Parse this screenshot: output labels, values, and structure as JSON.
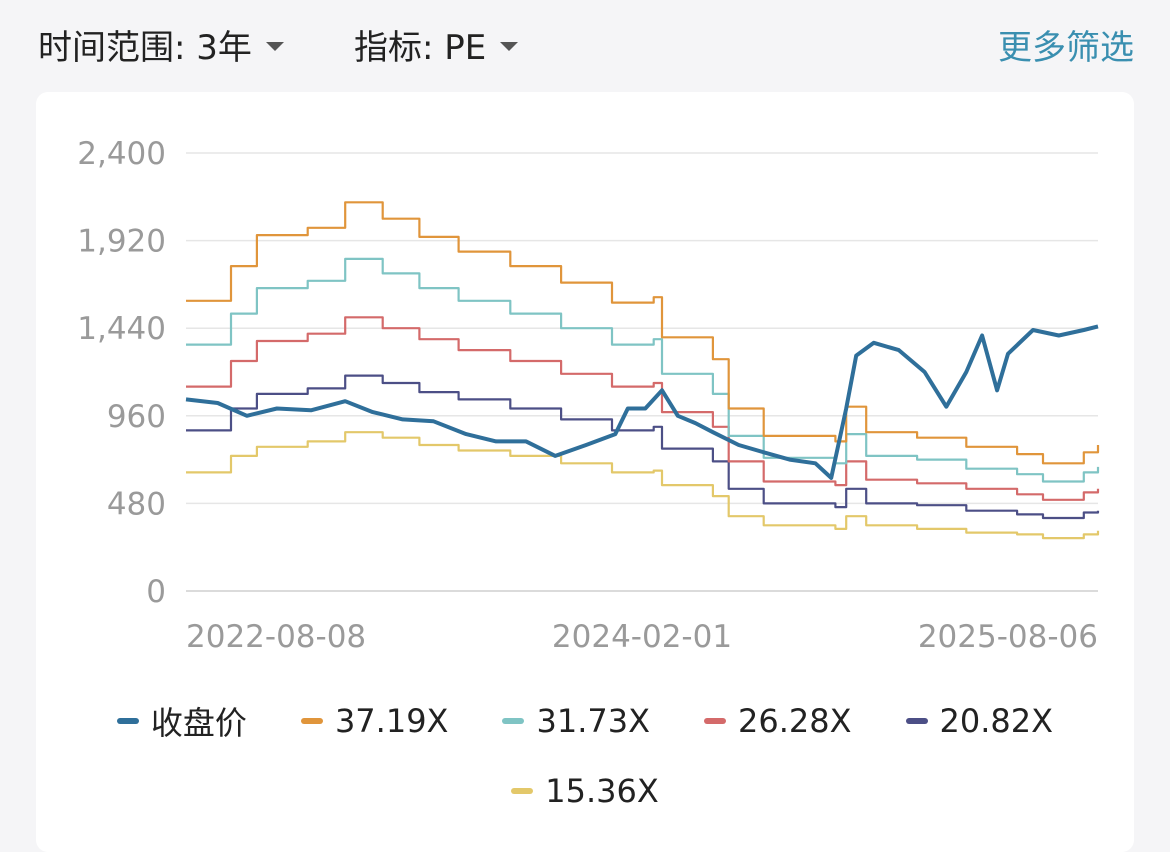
{
  "header": {
    "range_label": "时间范围: 3年",
    "metric_label": "指标: PE",
    "more_label": "更多筛选"
  },
  "chart_data": {
    "type": "line",
    "title": "",
    "xlabel": "",
    "ylabel": "",
    "ylim": [
      0,
      2400
    ],
    "yticks": [
      0,
      480,
      960,
      1440,
      1920,
      2400
    ],
    "ytick_labels": [
      "0",
      "480",
      "960",
      "1,440",
      "1,920",
      "2,400"
    ],
    "xtick_labels": [
      "2022-08-08",
      "2024-02-01",
      "2025-08-06"
    ],
    "xlim": [
      "2022-08-08",
      "2025-08-06"
    ],
    "grid": "horizontal",
    "legend_position": "bottom",
    "series": [
      {
        "name": "收盘价",
        "color": "#2f6f9a",
        "points": [
          [
            "2022-08-08",
            1050
          ],
          [
            "2022-09-15",
            1030
          ],
          [
            "2022-10-20",
            960
          ],
          [
            "2022-11-25",
            1000
          ],
          [
            "2023-01-05",
            990
          ],
          [
            "2023-02-15",
            1040
          ],
          [
            "2023-03-20",
            980
          ],
          [
            "2023-04-25",
            940
          ],
          [
            "2023-06-01",
            930
          ],
          [
            "2023-07-10",
            860
          ],
          [
            "2023-08-15",
            820
          ],
          [
            "2023-09-20",
            820
          ],
          [
            "2023-10-25",
            740
          ],
          [
            "2023-12-01",
            800
          ],
          [
            "2024-01-05",
            860
          ],
          [
            "2024-01-20",
            1000
          ],
          [
            "2024-02-10",
            1000
          ],
          [
            "2024-03-01",
            1100
          ],
          [
            "2024-03-20",
            960
          ],
          [
            "2024-04-10",
            920
          ],
          [
            "2024-05-01",
            870
          ],
          [
            "2024-06-01",
            800
          ],
          [
            "2024-07-01",
            760
          ],
          [
            "2024-08-01",
            720
          ],
          [
            "2024-09-01",
            700
          ],
          [
            "2024-09-20",
            620
          ],
          [
            "2024-10-08",
            1000
          ],
          [
            "2024-10-20",
            1290
          ],
          [
            "2024-11-10",
            1360
          ],
          [
            "2024-12-10",
            1320
          ],
          [
            "2025-01-10",
            1200
          ],
          [
            "2025-02-05",
            1010
          ],
          [
            "2025-03-01",
            1200
          ],
          [
            "2025-03-20",
            1400
          ],
          [
            "2025-04-07",
            1100
          ],
          [
            "2025-04-20",
            1300
          ],
          [
            "2025-05-20",
            1430
          ],
          [
            "2025-06-20",
            1400
          ],
          [
            "2025-07-20",
            1430
          ],
          [
            "2025-08-06",
            1450
          ]
        ]
      },
      {
        "name": "37.19X",
        "color": "#e0953b",
        "points": [
          [
            "2022-08-08",
            1590
          ],
          [
            "2022-10-01",
            1780
          ],
          [
            "2022-11-01",
            1950
          ],
          [
            "2023-01-01",
            1990
          ],
          [
            "2023-02-15",
            2130
          ],
          [
            "2023-04-01",
            2040
          ],
          [
            "2023-05-15",
            1940
          ],
          [
            "2023-07-01",
            1860
          ],
          [
            "2023-09-01",
            1780
          ],
          [
            "2023-11-01",
            1690
          ],
          [
            "2024-01-01",
            1580
          ],
          [
            "2024-02-20",
            1610
          ],
          [
            "2024-03-01",
            1390
          ],
          [
            "2024-05-01",
            1270
          ],
          [
            "2024-05-20",
            1000
          ],
          [
            "2024-07-01",
            850
          ],
          [
            "2024-09-25",
            820
          ],
          [
            "2024-10-08",
            1010
          ],
          [
            "2024-11-01",
            870
          ],
          [
            "2025-01-01",
            840
          ],
          [
            "2025-03-01",
            790
          ],
          [
            "2025-05-01",
            750
          ],
          [
            "2025-06-01",
            700
          ],
          [
            "2025-07-20",
            760
          ],
          [
            "2025-08-06",
            800
          ]
        ]
      },
      {
        "name": "31.73X",
        "color": "#7fc4c4",
        "points": [
          [
            "2022-08-08",
            1350
          ],
          [
            "2022-10-01",
            1520
          ],
          [
            "2022-11-01",
            1660
          ],
          [
            "2023-01-01",
            1700
          ],
          [
            "2023-02-15",
            1820
          ],
          [
            "2023-04-01",
            1740
          ],
          [
            "2023-05-15",
            1660
          ],
          [
            "2023-07-01",
            1590
          ],
          [
            "2023-09-01",
            1520
          ],
          [
            "2023-11-01",
            1440
          ],
          [
            "2024-01-01",
            1350
          ],
          [
            "2024-02-20",
            1380
          ],
          [
            "2024-03-01",
            1190
          ],
          [
            "2024-05-01",
            1080
          ],
          [
            "2024-05-20",
            850
          ],
          [
            "2024-07-01",
            730
          ],
          [
            "2024-09-25",
            700
          ],
          [
            "2024-10-08",
            860
          ],
          [
            "2024-11-01",
            740
          ],
          [
            "2025-01-01",
            720
          ],
          [
            "2025-03-01",
            670
          ],
          [
            "2025-05-01",
            640
          ],
          [
            "2025-06-01",
            600
          ],
          [
            "2025-07-20",
            650
          ],
          [
            "2025-08-06",
            680
          ]
        ]
      },
      {
        "name": "26.28X",
        "color": "#d46a6a",
        "points": [
          [
            "2022-08-08",
            1120
          ],
          [
            "2022-10-01",
            1260
          ],
          [
            "2022-11-01",
            1370
          ],
          [
            "2023-01-01",
            1410
          ],
          [
            "2023-02-15",
            1500
          ],
          [
            "2023-04-01",
            1440
          ],
          [
            "2023-05-15",
            1380
          ],
          [
            "2023-07-01",
            1320
          ],
          [
            "2023-09-01",
            1260
          ],
          [
            "2023-11-01",
            1190
          ],
          [
            "2024-01-01",
            1120
          ],
          [
            "2024-02-20",
            1140
          ],
          [
            "2024-03-01",
            980
          ],
          [
            "2024-05-01",
            900
          ],
          [
            "2024-05-20",
            710
          ],
          [
            "2024-07-01",
            600
          ],
          [
            "2024-09-25",
            580
          ],
          [
            "2024-10-08",
            710
          ],
          [
            "2024-11-01",
            610
          ],
          [
            "2025-01-01",
            590
          ],
          [
            "2025-03-01",
            560
          ],
          [
            "2025-05-01",
            530
          ],
          [
            "2025-06-01",
            500
          ],
          [
            "2025-07-20",
            540
          ],
          [
            "2025-08-06",
            560
          ]
        ]
      },
      {
        "name": "20.82X",
        "color": "#4c4f86",
        "points": [
          [
            "2022-08-08",
            880
          ],
          [
            "2022-10-01",
            1000
          ],
          [
            "2022-11-01",
            1080
          ],
          [
            "2023-01-01",
            1110
          ],
          [
            "2023-02-15",
            1180
          ],
          [
            "2023-04-01",
            1140
          ],
          [
            "2023-05-15",
            1090
          ],
          [
            "2023-07-01",
            1050
          ],
          [
            "2023-09-01",
            1000
          ],
          [
            "2023-11-01",
            940
          ],
          [
            "2024-01-01",
            880
          ],
          [
            "2024-02-20",
            900
          ],
          [
            "2024-03-01",
            780
          ],
          [
            "2024-05-01",
            710
          ],
          [
            "2024-05-20",
            560
          ],
          [
            "2024-07-01",
            480
          ],
          [
            "2024-09-25",
            460
          ],
          [
            "2024-10-08",
            560
          ],
          [
            "2024-11-01",
            480
          ],
          [
            "2025-01-01",
            470
          ],
          [
            "2025-03-01",
            440
          ],
          [
            "2025-05-01",
            420
          ],
          [
            "2025-06-01",
            400
          ],
          [
            "2025-07-20",
            430
          ],
          [
            "2025-08-06",
            440
          ]
        ]
      },
      {
        "name": "15.36X",
        "color": "#e3c86a",
        "points": [
          [
            "2022-08-08",
            650
          ],
          [
            "2022-10-01",
            740
          ],
          [
            "2022-11-01",
            790
          ],
          [
            "2023-01-01",
            820
          ],
          [
            "2023-02-15",
            870
          ],
          [
            "2023-04-01",
            840
          ],
          [
            "2023-05-15",
            800
          ],
          [
            "2023-07-01",
            770
          ],
          [
            "2023-09-01",
            740
          ],
          [
            "2023-11-01",
            700
          ],
          [
            "2024-01-01",
            650
          ],
          [
            "2024-02-20",
            660
          ],
          [
            "2024-03-01",
            580
          ],
          [
            "2024-05-01",
            520
          ],
          [
            "2024-05-20",
            410
          ],
          [
            "2024-07-01",
            360
          ],
          [
            "2024-09-25",
            340
          ],
          [
            "2024-10-08",
            410
          ],
          [
            "2024-11-01",
            360
          ],
          [
            "2025-01-01",
            340
          ],
          [
            "2025-03-01",
            320
          ],
          [
            "2025-05-01",
            310
          ],
          [
            "2025-06-01",
            290
          ],
          [
            "2025-07-20",
            310
          ],
          [
            "2025-08-06",
            330
          ]
        ]
      }
    ]
  }
}
